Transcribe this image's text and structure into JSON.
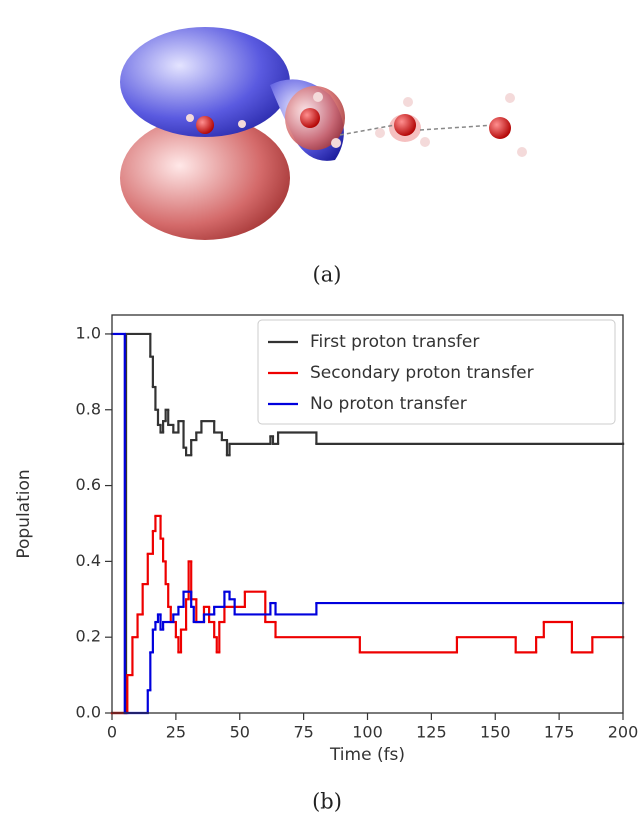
{
  "caption_a": "(a)",
  "caption_b": "(b)",
  "chart_data": {
    "type": "step",
    "xlabel": "Time (fs)",
    "ylabel": "Population",
    "xlim": [
      0,
      200
    ],
    "ylim": [
      0,
      1.05
    ],
    "xticks": [
      0,
      25,
      50,
      75,
      100,
      125,
      150,
      175,
      200
    ],
    "yticks": [
      {
        "value": 0,
        "label": "0.0"
      },
      0.2,
      0.4,
      0.6,
      0.8,
      {
        "value": 1,
        "label": "1.0"
      }
    ],
    "legend": "upper right",
    "series": [
      {
        "name": "First proton transfer",
        "color": "#333333",
        "x": [
          0,
          5.5,
          15,
          16,
          17,
          18,
          19,
          20,
          21,
          22,
          24,
          26,
          28,
          29,
          31,
          33,
          35,
          40,
          43,
          45,
          46,
          62,
          63,
          65,
          80,
          200
        ],
        "values": [
          0,
          1,
          0.94,
          0.86,
          0.8,
          0.76,
          0.74,
          0.77,
          0.8,
          0.76,
          0.74,
          0.77,
          0.7,
          0.68,
          0.72,
          0.74,
          0.77,
          0.74,
          0.72,
          0.68,
          0.71,
          0.73,
          0.71,
          0.74,
          0.71,
          0.71
        ]
      },
      {
        "name": "Secondary proton transfer",
        "color": "#ee0000",
        "x": [
          0,
          6,
          8,
          10,
          12,
          14,
          16,
          17,
          19,
          20,
          21,
          22,
          23,
          25,
          26,
          27,
          29,
          30,
          31,
          33,
          36,
          38,
          40,
          41,
          42,
          44,
          52,
          60,
          64,
          97,
          135,
          158,
          166,
          169,
          180,
          188,
          200
        ],
        "values": [
          0,
          0.1,
          0.2,
          0.26,
          0.34,
          0.42,
          0.48,
          0.52,
          0.46,
          0.4,
          0.34,
          0.28,
          0.24,
          0.2,
          0.16,
          0.22,
          0.3,
          0.4,
          0.3,
          0.24,
          0.28,
          0.24,
          0.2,
          0.16,
          0.24,
          0.28,
          0.32,
          0.24,
          0.2,
          0.16,
          0.2,
          0.16,
          0.2,
          0.24,
          0.16,
          0.2,
          0.2
        ]
      },
      {
        "name": "No proton transfer",
        "color": "#0000dd",
        "x": [
          0,
          5,
          14,
          15,
          16,
          17,
          18,
          19,
          20,
          24,
          26,
          28,
          31,
          32,
          36,
          40,
          44,
          46,
          48,
          62,
          64,
          80,
          200
        ],
        "values": [
          1,
          0,
          0.06,
          0.16,
          0.22,
          0.24,
          0.26,
          0.22,
          0.24,
          0.26,
          0.28,
          0.32,
          0.28,
          0.24,
          0.26,
          0.28,
          0.32,
          0.3,
          0.26,
          0.29,
          0.26,
          0.29,
          0.29
        ]
      }
    ]
  }
}
